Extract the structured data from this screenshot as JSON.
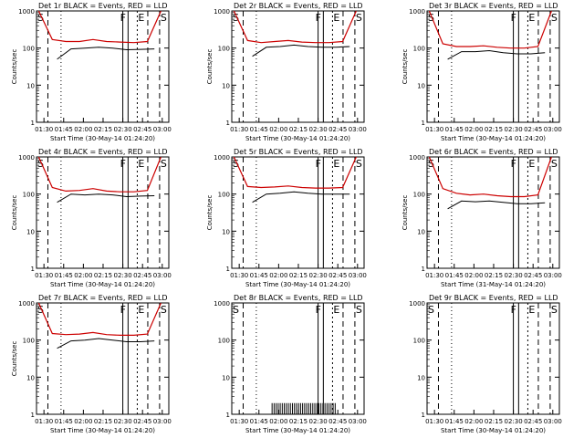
{
  "page": {
    "title_template_note": ""
  },
  "common": {
    "ylabel": "Counts/sec",
    "xlabel": "Start Time (30-May-14 01:24:20)",
    "xlabel_alt": "Start Time (31-May-14 01:24:20)",
    "x_ticks": [
      "01:30",
      "01:45",
      "02:00",
      "02:15",
      "02:30",
      "02:45",
      "03:00"
    ],
    "y_ticks": [
      "1",
      "10",
      "100",
      "1000"
    ],
    "markers": {
      "S": "S",
      "F": "F",
      "E": "E"
    },
    "colors": {
      "events": "#000000",
      "lld": "#cc0000"
    }
  },
  "chart_data": [
    {
      "type": "line",
      "title": "Det 1r BLACK = Events, RED = LLD",
      "xlabel": "Start Time (30-May-14 01:24:20)",
      "ylabel": "Counts/sec",
      "yscale": "log",
      "ylim": [
        1,
        1000
      ],
      "x_ticks": [
        "01:30",
        "01:45",
        "02:00",
        "02:15",
        "02:30",
        "02:45",
        "03:00"
      ],
      "markers": [
        "S",
        "F",
        "E",
        "S"
      ],
      "series": [
        {
          "values_lld": [
            1000,
            170,
            150,
            150,
            170,
            150,
            145,
            140,
            150,
            1000
          ]
        },
        {
          "values_events": [
            50,
            95,
            100,
            105,
            100,
            90,
            92,
            95
          ]
        }
      ],
      "empty": false
    },
    {
      "type": "line",
      "title": "Det 2r BLACK = Events, RED = LLD",
      "xlabel": "Start Time (30-May-14 01:24:20)",
      "ylabel": "Counts/sec",
      "yscale": "log",
      "ylim": [
        1,
        1000
      ],
      "x_ticks": [
        "01:30",
        "01:45",
        "02:00",
        "02:15",
        "02:30",
        "02:45",
        "03:00"
      ],
      "markers": [
        "S",
        "F",
        "E",
        "S"
      ],
      "series": [
        {
          "values_lld": [
            1000,
            160,
            140,
            150,
            160,
            145,
            140,
            140,
            150,
            1000
          ]
        },
        {
          "values_events": [
            60,
            105,
            110,
            120,
            110,
            105,
            105,
            110
          ]
        }
      ],
      "empty": false
    },
    {
      "type": "line",
      "title": "Det 3r BLACK = Events, RED = LLD",
      "xlabel": "Start Time (30-May-14 01:24:20)",
      "ylabel": "Counts/sec",
      "yscale": "log",
      "ylim": [
        1,
        1000
      ],
      "x_ticks": [
        "01:30",
        "01:45",
        "02:00",
        "02:15",
        "02:30",
        "02:45",
        "03:00"
      ],
      "markers": [
        "S",
        "F",
        "E",
        "S"
      ],
      "series": [
        {
          "values_lld": [
            1000,
            130,
            110,
            110,
            115,
            105,
            100,
            100,
            110,
            1000
          ]
        },
        {
          "values_events": [
            50,
            80,
            80,
            85,
            75,
            70,
            70,
            75
          ]
        }
      ],
      "empty": false
    },
    {
      "type": "line",
      "title": "Det 4r BLACK = Events, RED = LLD",
      "xlabel": "Start Time (30-May-14 01:24:20)",
      "ylabel": "Counts/sec",
      "yscale": "log",
      "ylim": [
        1,
        1000
      ],
      "x_ticks": [
        "01:30",
        "01:45",
        "02:00",
        "02:15",
        "02:30",
        "02:45",
        "03:00"
      ],
      "markers": [
        "S",
        "F",
        "E",
        "S"
      ],
      "series": [
        {
          "values_lld": [
            1000,
            150,
            120,
            125,
            140,
            120,
            115,
            115,
            125,
            1000
          ]
        },
        {
          "values_events": [
            60,
            100,
            95,
            100,
            95,
            85,
            88,
            90
          ]
        }
      ],
      "empty": false
    },
    {
      "type": "line",
      "title": "Det 5r BLACK = Events, RED = LLD",
      "xlabel": "Start Time (30-May-14 01:24:20)",
      "ylabel": "Counts/sec",
      "yscale": "log",
      "ylim": [
        1,
        1000
      ],
      "x_ticks": [
        "01:30",
        "01:45",
        "02:00",
        "02:15",
        "02:30",
        "02:45",
        "03:00"
      ],
      "markers": [
        "S",
        "F",
        "E",
        "S"
      ],
      "series": [
        {
          "values_lld": [
            1000,
            160,
            150,
            155,
            165,
            150,
            145,
            145,
            150,
            1000
          ]
        },
        {
          "values_events": [
            60,
            100,
            105,
            115,
            105,
            100,
            100,
            100
          ]
        }
      ],
      "empty": false
    },
    {
      "type": "line",
      "title": "Det 6r BLACK = Events, RED = LLD",
      "xlabel": "Start Time (31-May-14 01:24:20)",
      "ylabel": "Counts/sec",
      "yscale": "log",
      "ylim": [
        1,
        1000
      ],
      "x_ticks": [
        "01:30",
        "01:45",
        "02:00",
        "02:15",
        "02:30",
        "02:45",
        "03:00"
      ],
      "markers": [
        "S",
        "F",
        "E",
        "S"
      ],
      "series": [
        {
          "values_lld": [
            1000,
            140,
            105,
            95,
            100,
            90,
            85,
            85,
            95,
            1000
          ]
        },
        {
          "values_events": [
            40,
            65,
            62,
            65,
            60,
            55,
            55,
            58
          ]
        }
      ],
      "empty": false
    },
    {
      "type": "line",
      "title": "Det 7r BLACK = Events, RED = LLD",
      "xlabel": "Start Time (30-May-14 01:24:20)",
      "ylabel": "Counts/sec",
      "yscale": "log",
      "ylim": [
        1,
        1000
      ],
      "x_ticks": [
        "01:30",
        "01:45",
        "02:00",
        "02:15",
        "02:30",
        "02:45",
        "03:00"
      ],
      "markers": [
        "S",
        "F",
        "E",
        "S"
      ],
      "series": [
        {
          "values_lld": [
            1000,
            150,
            140,
            145,
            160,
            140,
            135,
            135,
            145,
            1000
          ]
        },
        {
          "values_events": [
            60,
            95,
            100,
            110,
            100,
            90,
            90,
            95
          ]
        }
      ],
      "empty": false
    },
    {
      "type": "line",
      "title": "Det 8r BLACK = Events, RED = LLD",
      "xlabel": "Start Time (30-May-14 01:24:20)",
      "ylabel": "",
      "yscale": "log",
      "ylim": [
        1,
        1000
      ],
      "x_ticks": [
        "01:30",
        "01:45",
        "02:00",
        "02:15",
        "02:30",
        "02:45",
        "03:00"
      ],
      "markers": [
        "S",
        "F",
        "E",
        "S"
      ],
      "series": [],
      "spikes": true,
      "empty": true
    },
    {
      "type": "line",
      "title": "Det 9r BLACK = Events, RED = LLD",
      "xlabel": "Start Time (30-May-14 01:24:20)",
      "ylabel": "",
      "yscale": "log",
      "ylim": [
        1,
        1000
      ],
      "x_ticks": [
        "01:30",
        "01:45",
        "02:00",
        "02:15",
        "02:30",
        "02:45",
        "03:00"
      ],
      "markers": [
        "S",
        "F",
        "E",
        "S"
      ],
      "series": [],
      "spikes": false,
      "empty": true
    }
  ]
}
